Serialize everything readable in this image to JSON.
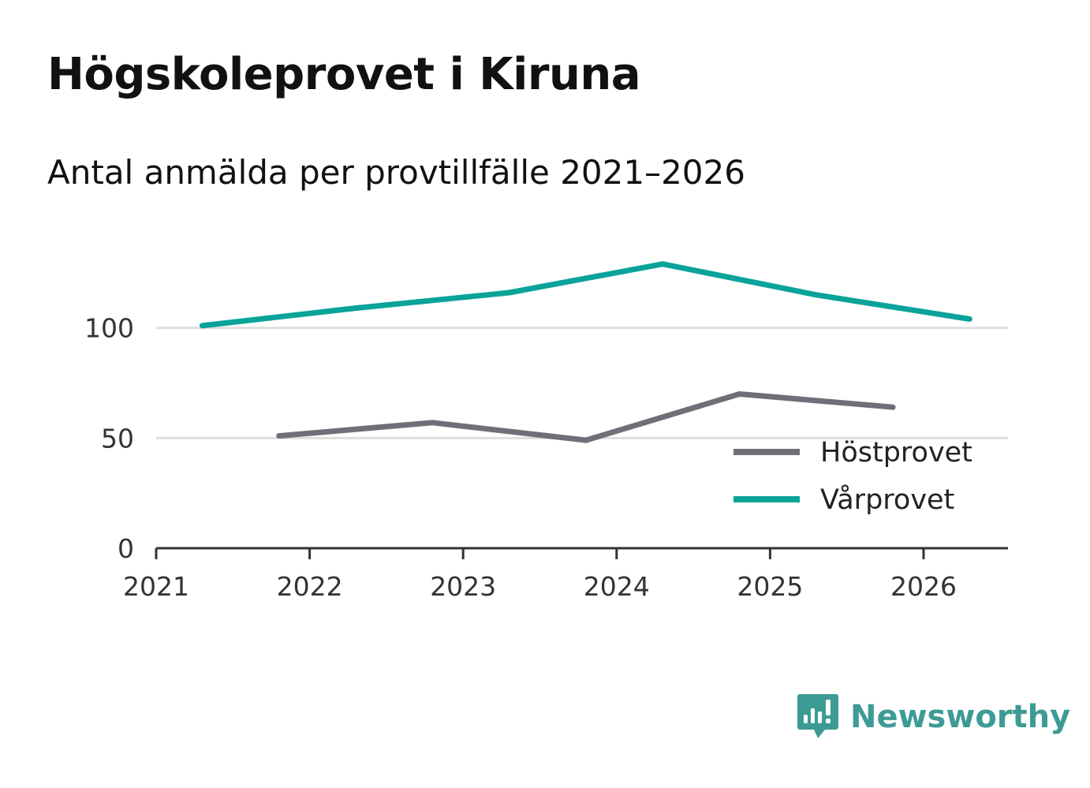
{
  "title": "Högskoleprovet i Kiruna",
  "subtitle": "Antal anmälda per provtillfälle 2021–2026",
  "brand": {
    "name": "Newsworthy",
    "icon": "newsworthy-logo-icon",
    "color": "#3d9b95"
  },
  "chart_data": {
    "type": "line",
    "title": "Högskoleprovet i Kiruna",
    "subtitle": "Antal anmälda per provtillfälle 2021–2026",
    "xlabel": "",
    "ylabel": "",
    "x_ticks": [
      "2021",
      "2022",
      "2023",
      "2024",
      "2025",
      "2026"
    ],
    "xlim": [
      2021,
      2026.55
    ],
    "y_ticks": [
      "0",
      "50",
      "100"
    ],
    "ylim": [
      0,
      145
    ],
    "grid": "horizontal",
    "legend_position": "bottom-right",
    "series": [
      {
        "name": "Höstprovet",
        "color": "#6f6f78",
        "points": [
          {
            "x": 2021.8,
            "y": 51
          },
          {
            "x": 2022.8,
            "y": 57
          },
          {
            "x": 2023.8,
            "y": 49
          },
          {
            "x": 2024.8,
            "y": 70
          },
          {
            "x": 2025.8,
            "y": 64
          }
        ]
      },
      {
        "name": "Vårprovet",
        "color": "#0aa39a",
        "points": [
          {
            "x": 2021.3,
            "y": 101
          },
          {
            "x": 2022.3,
            "y": 109
          },
          {
            "x": 2023.3,
            "y": 116
          },
          {
            "x": 2024.3,
            "y": 129
          },
          {
            "x": 2025.3,
            "y": 115
          },
          {
            "x": 2026.3,
            "y": 104
          }
        ]
      }
    ]
  }
}
